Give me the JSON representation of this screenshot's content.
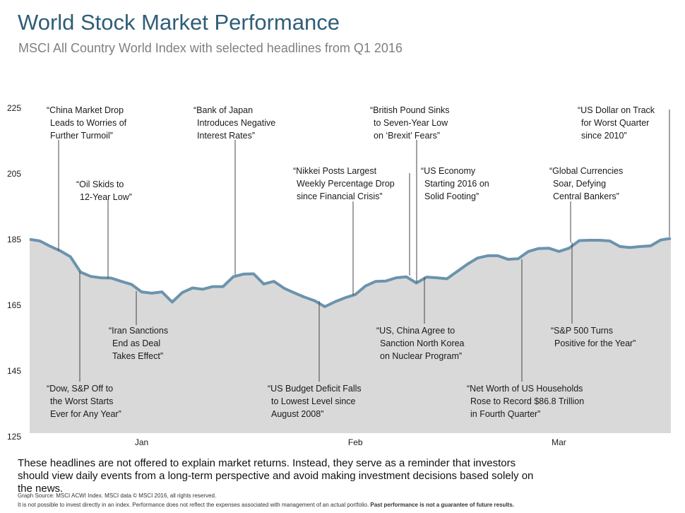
{
  "title": "World Stock Market Performance",
  "subtitle": "MSCI All Country World Index with selected headlines from Q1 2016",
  "chart_data": {
    "type": "area",
    "color": "#6b93ad",
    "fill": "#d9d9d9",
    "categories": [
      null,
      null,
      null,
      null,
      null,
      null,
      null,
      null,
      null,
      null,
      null,
      "Jan",
      null,
      null,
      null,
      null,
      null,
      null,
      null,
      null,
      null,
      null,
      null,
      null,
      null,
      null,
      null,
      null,
      null,
      null,
      null,
      null,
      "Feb",
      null,
      null,
      null,
      null,
      null,
      null,
      null,
      null,
      null,
      null,
      null,
      null,
      null,
      null,
      null,
      null,
      null,
      null,
      null,
      "Mar",
      null,
      null,
      null,
      null,
      null,
      null,
      null,
      null,
      null,
      null,
      null
    ],
    "values": [
      184,
      183.5,
      181.9,
      180.5,
      178.7,
      174.0,
      172.7,
      172.3,
      172.2,
      171.2,
      170.3,
      168.0,
      167.6,
      168.0,
      164.9,
      167.8,
      169.2,
      168.8,
      169.6,
      169.6,
      172.6,
      173.4,
      173.5,
      170.4,
      171.2,
      169.1,
      167.7,
      166.4,
      165.3,
      163.5,
      165.0,
      166.2,
      167.2,
      169.8,
      171.2,
      171.3,
      172.3,
      172.6,
      170.7,
      172.5,
      172.3,
      172.0,
      174.2,
      176.4,
      178.3,
      179,
      179,
      177.9,
      178.1,
      180.3,
      181.2,
      181.3,
      180.3,
      181.3,
      183.6,
      183.7,
      183.7,
      183.5,
      181.8,
      181.5,
      181.8,
      182.0,
      183.8,
      184.3
    ],
    "ylim": [
      125,
      225
    ],
    "yticks": [
      125,
      145,
      165,
      185,
      205,
      225
    ],
    "grid": false,
    "annotations": [
      {
        "lines": [
          "“China Market Drop",
          "Leads to Worries of",
          "Further Turmoil”"
        ]
      },
      {
        "lines": [
          "“Oil Skids to",
          "12-Year Low”"
        ]
      },
      {
        "lines": [
          "“Bank of Japan",
          "Introduces Negative",
          "Interest Rates”"
        ]
      },
      {
        "lines": [
          "“Nikkei Posts Largest",
          "Weekly Percentage Drop",
          "since Financial Crisis”"
        ]
      },
      {
        "lines": [
          "“British Pound Sinks",
          "to Seven-Year Low",
          "on ‘Brexit’ Fears”"
        ]
      },
      {
        "lines": [
          "“US Economy",
          "Starting 2016 on",
          "Solid Footing”"
        ]
      },
      {
        "lines": [
          "“Global Currencies",
          "Soar, Defying",
          "Central Bankers”"
        ]
      },
      {
        "lines": [
          "“US Dollar on Track",
          "for Worst Quarter",
          "since 2010”"
        ]
      },
      {
        "lines": [
          "“Dow, S&P Off to",
          "the Worst Starts",
          "Ever for Any Year”"
        ]
      },
      {
        "lines": [
          "“Iran Sanctions",
          "End as Deal",
          "Takes Effect”"
        ]
      },
      {
        "lines": [
          "“US Budget Deficit Falls",
          "to Lowest Level  since",
          "August 2008”"
        ]
      },
      {
        "lines": [
          "“US, China Agree to",
          "Sanction North Korea",
          "on Nuclear Program”"
        ]
      },
      {
        "lines": [
          "“Net Worth of US Households",
          "Rose to Record $86.8 Trillion",
          "in Fourth Quarter”"
        ]
      },
      {
        "lines": [
          "“S&P 500 Turns",
          "Positive for the Year”"
        ]
      }
    ]
  },
  "note": "These headlines are not offered to explain market returns. Instead, they serve as a reminder that investors should view daily events from a long-term perspective and avoid making investment  decisions based solely on the news.",
  "source": "Graph Source: MSCI ACWI Index. MSCI data © MSCI 2016, all rights reserved.",
  "disclaimer": "It is not possible to invest directly in an index. Performance does not reflect the expenses associated with management of an actual portfolio. ",
  "disclaimer_bold": "Past performance is not a guarantee of future results."
}
